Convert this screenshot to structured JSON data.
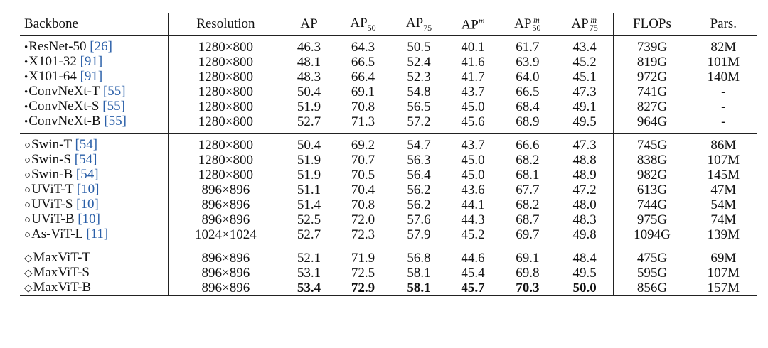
{
  "table": {
    "header": [
      {
        "base": "Backbone"
      },
      {
        "base": "Resolution"
      },
      {
        "base": "AP"
      },
      {
        "base": "AP",
        "sub": "50"
      },
      {
        "base": "AP",
        "sub": "75"
      },
      {
        "base": "AP",
        "sup": "m"
      },
      {
        "base": "AP",
        "sub": "50",
        "sup": "m"
      },
      {
        "base": "AP",
        "sub": "75",
        "sup": "m"
      },
      {
        "base": "FLOPs"
      },
      {
        "base": "Pars."
      }
    ],
    "groups": [
      {
        "rows": [
          {
            "backbone": {
              "marker": "•",
              "name": "ResNet-50 ",
              "ref": "[26]"
            },
            "cells": [
              "1280×800",
              "46.3",
              "64.3",
              "50.5",
              "40.1",
              "61.7",
              "43.4",
              "739G",
              "82M"
            ]
          },
          {
            "backbone": {
              "marker": "•",
              "name": "X101-32 ",
              "ref": "[91]"
            },
            "cells": [
              "1280×800",
              "48.1",
              "66.5",
              "52.4",
              "41.6",
              "63.9",
              "45.2",
              "819G",
              "101M"
            ]
          },
          {
            "backbone": {
              "marker": "•",
              "name": "X101-64 ",
              "ref": "[91]"
            },
            "cells": [
              "1280×800",
              "48.3",
              "66.4",
              "52.3",
              "41.7",
              "64.0",
              "45.1",
              "972G",
              "140M"
            ]
          },
          {
            "backbone": {
              "marker": "•",
              "name": "ConvNeXt-T ",
              "ref": "[55]"
            },
            "cells": [
              "1280×800",
              "50.4",
              "69.1",
              "54.8",
              "43.7",
              "66.5",
              "47.3",
              "741G",
              "-"
            ]
          },
          {
            "backbone": {
              "marker": "•",
              "name": "ConvNeXt-S ",
              "ref": "[55]"
            },
            "cells": [
              "1280×800",
              "51.9",
              "70.8",
              "56.5",
              "45.0",
              "68.4",
              "49.1",
              "827G",
              "-"
            ]
          },
          {
            "backbone": {
              "marker": "•",
              "name": "ConvNeXt-B ",
              "ref": "[55]"
            },
            "cells": [
              "1280×800",
              "52.7",
              "71.3",
              "57.2",
              "45.6",
              "68.9",
              "49.5",
              "964G",
              "-"
            ]
          }
        ]
      },
      {
        "rows": [
          {
            "backbone": {
              "marker": "○",
              "name": "Swin-T ",
              "ref": "[54]"
            },
            "cells": [
              "1280×800",
              "50.4",
              "69.2",
              "54.7",
              "43.7",
              "66.6",
              "47.3",
              "745G",
              "86M"
            ]
          },
          {
            "backbone": {
              "marker": "○",
              "name": "Swin-S ",
              "ref": "[54]"
            },
            "cells": [
              "1280×800",
              "51.9",
              "70.7",
              "56.3",
              "45.0",
              "68.2",
              "48.8",
              "838G",
              "107M"
            ]
          },
          {
            "backbone": {
              "marker": "○",
              "name": "Swin-B ",
              "ref": "[54]"
            },
            "cells": [
              "1280×800",
              "51.9",
              "70.5",
              "56.4",
              "45.0",
              "68.1",
              "48.9",
              "982G",
              "145M"
            ]
          },
          {
            "backbone": {
              "marker": "○",
              "name": "UViT-T ",
              "ref": "[10]"
            },
            "cells": [
              "896×896",
              "51.1",
              "70.4",
              "56.2",
              "43.6",
              "67.7",
              "47.2",
              "613G",
              "47M"
            ]
          },
          {
            "backbone": {
              "marker": "○",
              "name": "UViT-S ",
              "ref": "[10]"
            },
            "cells": [
              "896×896",
              "51.4",
              "70.8",
              "56.2",
              "44.1",
              "68.2",
              "48.0",
              "744G",
              "54M"
            ]
          },
          {
            "backbone": {
              "marker": "○",
              "name": "UViT-B ",
              "ref": "[10]"
            },
            "cells": [
              "896×896",
              "52.5",
              "72.0",
              "57.6",
              "44.3",
              "68.7",
              "48.3",
              "975G",
              "74M"
            ]
          },
          {
            "backbone": {
              "marker": "○",
              "name": "As-ViT-L ",
              "ref": "[11]"
            },
            "cells": [
              "1024×1024",
              "52.7",
              "72.3",
              "57.9",
              "45.2",
              "69.7",
              "49.8",
              "1094G",
              "139M"
            ]
          }
        ]
      },
      {
        "rows": [
          {
            "backbone": {
              "marker": "◇",
              "name": "MaxViT-T"
            },
            "cells": [
              "896×896",
              "52.1",
              "71.9",
              "56.8",
              "44.6",
              "69.1",
              "48.4",
              "475G",
              "69M"
            ]
          },
          {
            "backbone": {
              "marker": "◇",
              "name": "MaxViT-S"
            },
            "cells": [
              "896×896",
              "53.1",
              "72.5",
              "58.1",
              "45.4",
              "69.8",
              "49.5",
              "595G",
              "107M"
            ]
          },
          {
            "backbone": {
              "marker": "◇",
              "name": "MaxViT-B"
            },
            "cells": [
              "896×896",
              "53.4",
              "72.9",
              "58.1",
              "45.7",
              "70.3",
              "50.0",
              "856G",
              "157M"
            ],
            "best": true
          }
        ]
      }
    ]
  }
}
